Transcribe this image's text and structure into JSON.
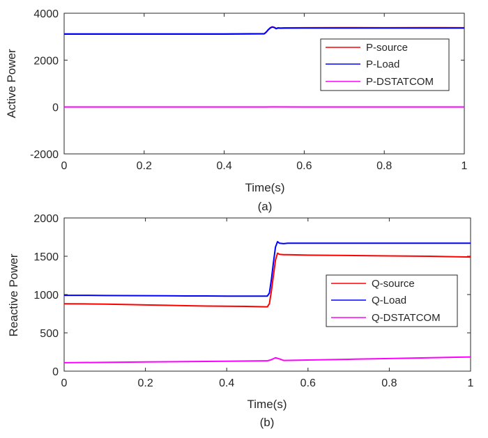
{
  "chart_data": [
    {
      "type": "line",
      "caption": "(a)",
      "xlabel": "Time(s)",
      "ylabel": "Active Power",
      "xlim": [
        0,
        1
      ],
      "ylim": [
        -2000,
        4000
      ],
      "xticks": [
        0,
        0.2,
        0.4,
        0.6,
        0.8,
        1
      ],
      "xtick_labels": [
        "0",
        "0.2",
        "0.4",
        "0.6",
        "0.8",
        "1"
      ],
      "yticks": [
        -2000,
        0,
        2000,
        4000
      ],
      "ytick_labels": [
        "-2000",
        "0",
        "2000",
        "4000"
      ],
      "grid": false,
      "legend_position": "top-right",
      "series": [
        {
          "name": "P-source",
          "color": "#ff0000",
          "x": [
            0,
            0.1,
            0.2,
            0.3,
            0.4,
            0.5,
            0.505,
            0.51,
            0.515,
            0.52,
            0.525,
            0.53,
            0.535,
            0.54,
            0.55,
            0.6,
            0.7,
            0.8,
            0.9,
            1.0
          ],
          "y": [
            3120,
            3120,
            3120,
            3120,
            3120,
            3130,
            3200,
            3300,
            3380,
            3420,
            3400,
            3350,
            3380,
            3370,
            3375,
            3380,
            3385,
            3380,
            3385,
            3380
          ]
        },
        {
          "name": "P-Load",
          "color": "#0000ff",
          "x": [
            0,
            0.1,
            0.2,
            0.3,
            0.4,
            0.5,
            0.505,
            0.51,
            0.515,
            0.52,
            0.525,
            0.53,
            0.535,
            0.54,
            0.55,
            0.6,
            0.7,
            0.8,
            0.9,
            1.0
          ],
          "y": [
            3110,
            3110,
            3110,
            3110,
            3110,
            3120,
            3190,
            3290,
            3370,
            3410,
            3390,
            3340,
            3370,
            3360,
            3365,
            3370,
            3370,
            3370,
            3370,
            3370
          ]
        },
        {
          "name": "P-DSTATCOM",
          "color": "#ff00ff",
          "x": [
            0,
            0.2,
            0.4,
            0.5,
            0.52,
            0.6,
            0.8,
            1.0
          ],
          "y": [
            0,
            0,
            0,
            0,
            5,
            0,
            0,
            0
          ]
        }
      ]
    },
    {
      "type": "line",
      "caption": "(b)",
      "xlabel": "Time(s)",
      "ylabel": "Reactive Power",
      "xlim": [
        0,
        1
      ],
      "ylim": [
        0,
        2000
      ],
      "xticks": [
        0,
        0.2,
        0.4,
        0.6,
        0.8,
        1
      ],
      "xtick_labels": [
        "0",
        "0.2",
        "0.4",
        "0.6",
        "0.8",
        "1"
      ],
      "yticks": [
        0,
        500,
        1000,
        1500,
        2000
      ],
      "ytick_labels": [
        "0",
        "500",
        "1000",
        "1500",
        "2000"
      ],
      "grid": false,
      "legend_position": "right",
      "series": [
        {
          "name": "Q-source",
          "color": "#ff0000",
          "x": [
            0,
            0.05,
            0.1,
            0.15,
            0.2,
            0.25,
            0.3,
            0.35,
            0.4,
            0.45,
            0.5,
            0.505,
            0.51,
            0.515,
            0.52,
            0.525,
            0.53,
            0.54,
            0.55,
            0.6,
            0.7,
            0.8,
            0.9,
            1.0
          ],
          "y": [
            880,
            878,
            875,
            870,
            865,
            860,
            855,
            850,
            848,
            845,
            840,
            880,
            1050,
            1250,
            1450,
            1540,
            1525,
            1520,
            1520,
            1515,
            1510,
            1505,
            1500,
            1490
          ]
        },
        {
          "name": "Q-Load",
          "color": "#0000ff",
          "x": [
            0,
            0.05,
            0.1,
            0.15,
            0.2,
            0.25,
            0.3,
            0.35,
            0.4,
            0.45,
            0.5,
            0.505,
            0.51,
            0.515,
            0.52,
            0.525,
            0.53,
            0.54,
            0.55,
            0.6,
            0.7,
            0.8,
            0.9,
            1.0
          ],
          "y": [
            990,
            990,
            988,
            986,
            985,
            984,
            982,
            982,
            980,
            980,
            980,
            1020,
            1200,
            1420,
            1620,
            1690,
            1670,
            1665,
            1670,
            1670,
            1670,
            1670,
            1670,
            1670
          ]
        },
        {
          "name": "Q-DSTATCOM",
          "color": "#ff00ff",
          "x": [
            0,
            0.1,
            0.2,
            0.3,
            0.4,
            0.5,
            0.51,
            0.52,
            0.53,
            0.54,
            0.6,
            0.7,
            0.8,
            0.9,
            1.0
          ],
          "y": [
            110,
            115,
            120,
            125,
            130,
            135,
            150,
            175,
            160,
            140,
            145,
            155,
            165,
            175,
            185
          ]
        }
      ]
    }
  ]
}
